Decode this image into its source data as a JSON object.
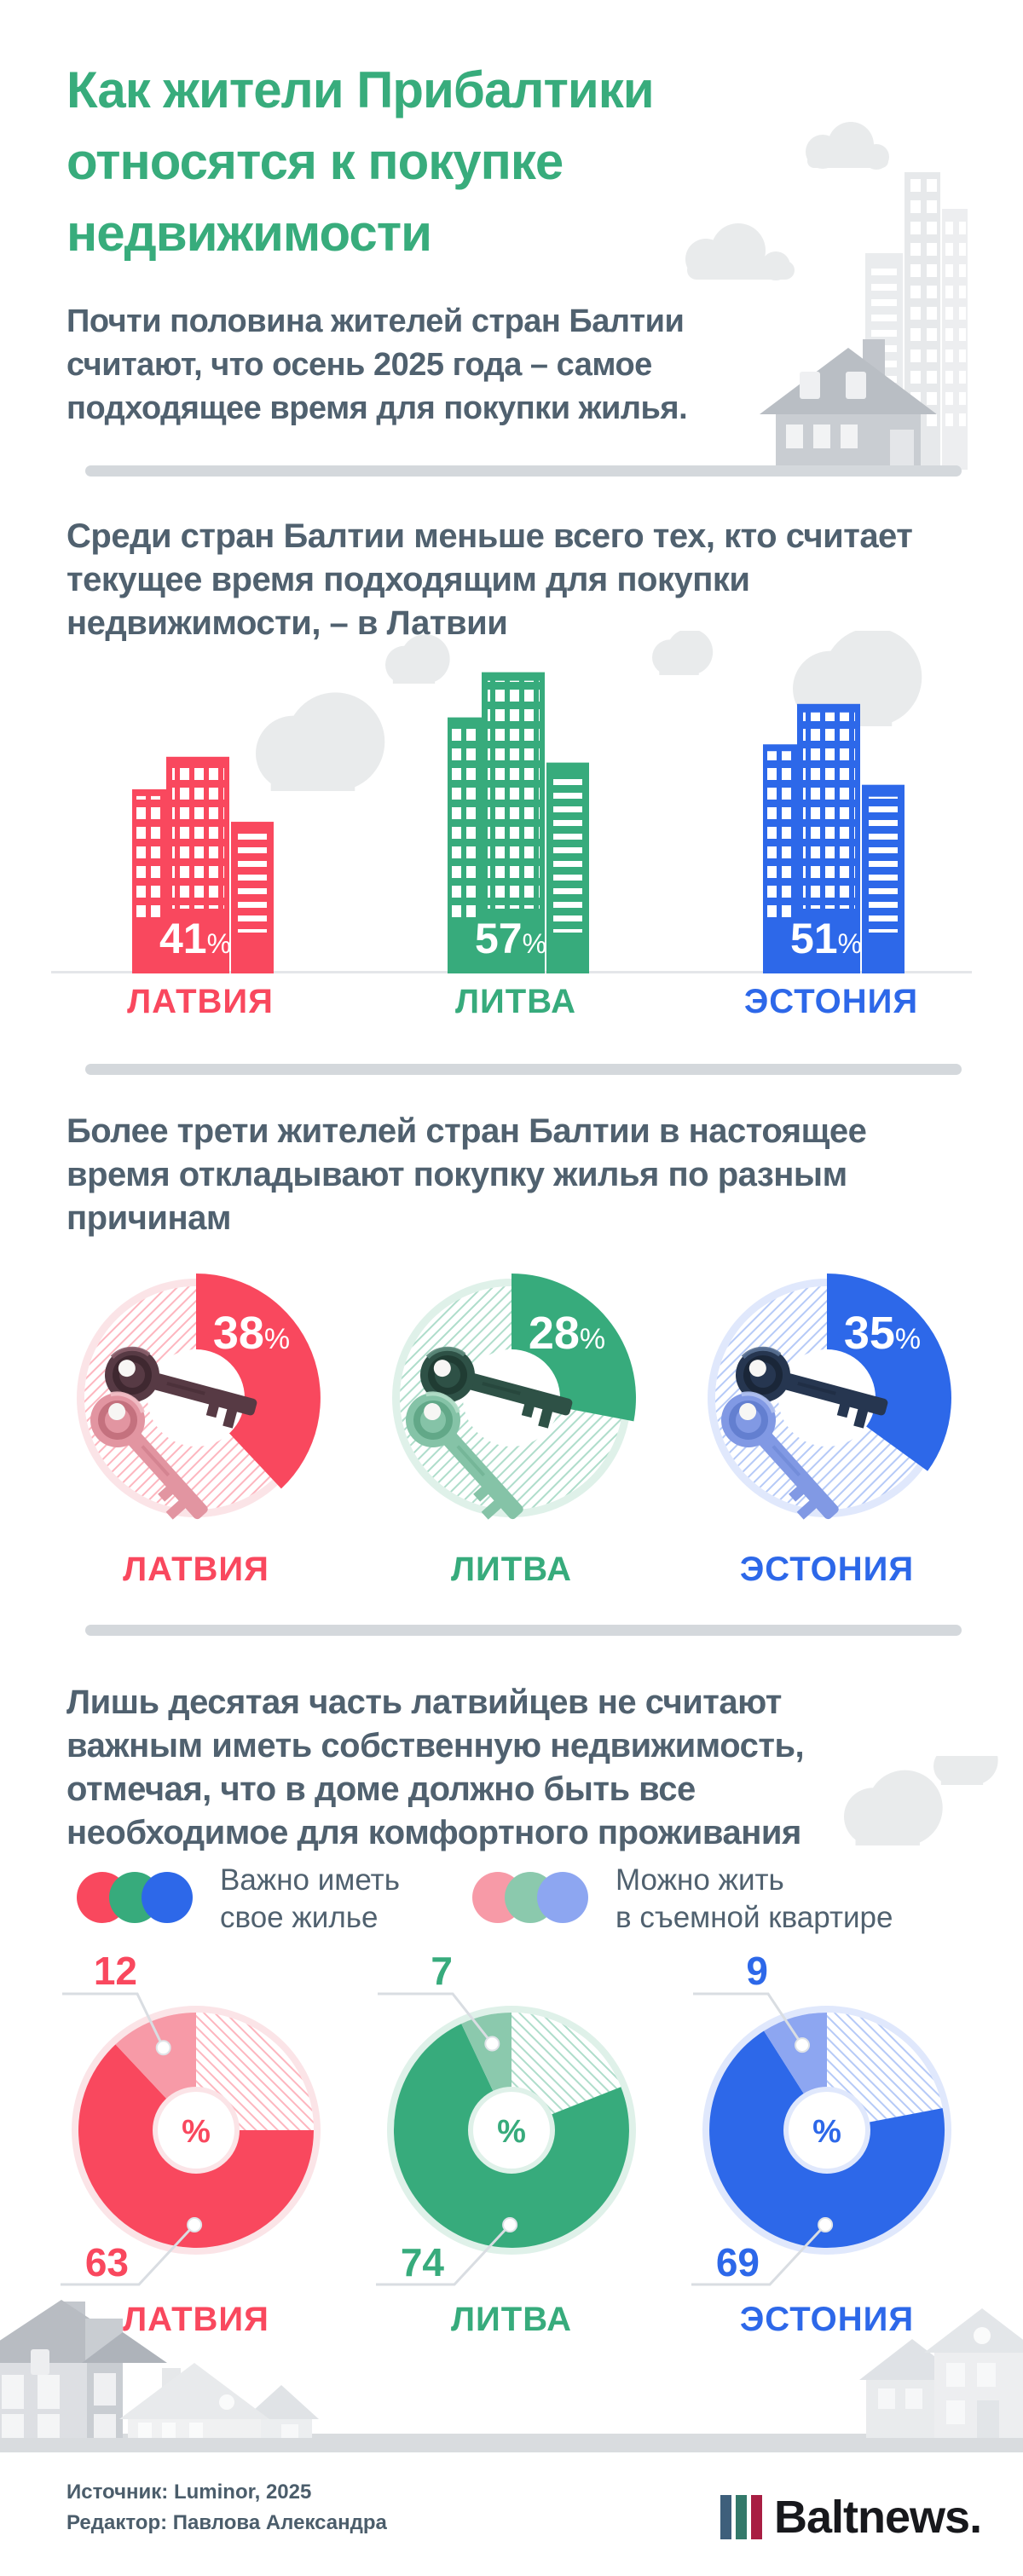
{
  "percent_sign": "%",
  "header": {
    "title_lines": [
      "Как жители Прибалтики",
      "относятся к покупке",
      "недвижимости"
    ],
    "intro_lines": [
      "Почти половина жителей стран Балтии",
      "считают, что осень 2025 года – самое",
      "подходящее время для покупки жилья."
    ]
  },
  "colors": {
    "slate": "#50616F",
    "divider": "#D4D8DC",
    "illustration_light": "#E9EBED",
    "illustration_mid": "#DADDE1",
    "illustration_dark": "#C9CDD2",
    "roof_gray": "#B9BEC4",
    "latvia": "#F9485E",
    "lithuania": "#37AB7C",
    "estonia": "#2D68E9",
    "latvia_light": "#F79AA7",
    "lithuania_light": "#8BC9AD",
    "estonia_light": "#8DA6F1",
    "latvia_pale": "#FBE4E7",
    "lithuania_pale": "#DFF1E9",
    "estonia_pale": "#E0E8FC",
    "latvia_hatch": "rgba(249,72,94,0.40)",
    "lithuania_hatch": "rgba(55,171,124,0.40)",
    "estonia_hatch": "rgba(45,104,233,0.35)",
    "callout_line": "#D9DDE2"
  },
  "buildings_chart": {
    "heading_lines": [
      "Среди стран Балтии меньше всего тех, кто считает",
      "текущее время подходящим для покупки",
      "недвижимости, – в Латвии"
    ],
    "items": [
      {
        "key": "latvia",
        "country": "ЛАТВИЯ",
        "value": 41
      },
      {
        "key": "lithuania",
        "country": "ЛИТВА",
        "value": 57
      },
      {
        "key": "estonia",
        "country": "ЭСТОНИЯ",
        "value": 51
      }
    ]
  },
  "donut_chart": {
    "heading_lines": [
      "Более трети жителей стран Балтии в настоящее",
      "время откладывают покупку жилья по разным",
      "причинам"
    ],
    "items": [
      {
        "key": "latvia",
        "country": "ЛАТВИЯ",
        "value": 38
      },
      {
        "key": "lithuania",
        "country": "ЛИТВА",
        "value": 28
      },
      {
        "key": "estonia",
        "country": "ЭСТОНИЯ",
        "value": 35
      }
    ]
  },
  "pie_chart": {
    "heading_lines": [
      "Лишь десятая часть латвийцев не считают",
      "важным иметь собственную недвижимость,",
      "отмечая, что в доме должно быть все",
      "необходимое для комфортного проживания"
    ],
    "legend": [
      {
        "variant": "solid",
        "label_lines": [
          "Важно иметь",
          "свое жилье"
        ]
      },
      {
        "variant": "light",
        "label_lines": [
          "Можно жить",
          "в съемной квартире"
        ]
      }
    ],
    "items": [
      {
        "key": "latvia",
        "country": "ЛАТВИЯ",
        "own": 63,
        "rent": 12
      },
      {
        "key": "lithuania",
        "country": "ЛИТВА",
        "own": 74,
        "rent": 7
      },
      {
        "key": "estonia",
        "country": "ЭСТОНИЯ",
        "own": 69,
        "rent": 9
      }
    ]
  },
  "footer": {
    "source": "Источник: Luminor, 2025",
    "editor": "Редактор: Павлова Александра",
    "logo_text": "Baltnews.",
    "logo_bar_colors": [
      "#3E5F7B",
      "#33796A",
      "#A81E43"
    ]
  },
  "chart_data": [
    {
      "type": "bar",
      "title": "Среди стран Балтии меньше всего тех, кто считает текущее время подходящим для покупки недвижимости, – в Латвии",
      "categories": [
        "ЛАТВИЯ",
        "ЛИТВА",
        "ЭСТОНИЯ"
      ],
      "values": [
        41,
        57,
        51
      ],
      "unit": "%",
      "xlabel": "",
      "ylabel": "",
      "notes": "bars drawn as skyscraper illustrations in country colors"
    },
    {
      "type": "pie",
      "title": "Более трети жителей стран Балтии в настоящее время откладывают покупку жилья по разным причинам",
      "categories": [
        "ЛАТВИЯ",
        "ЛИТВА",
        "ЭСТОНИЯ"
      ],
      "values": [
        38,
        28,
        35
      ],
      "unit": "%",
      "notes": "three donut charts; solid wedge = share postponing purchase, rest hatched; keys illustration in center"
    },
    {
      "type": "pie",
      "title": "Лишь десятая часть латвийцев не считают важным иметь собственную недвижимость",
      "categories": [
        "ЛАТВИЯ",
        "ЛИТВА",
        "ЭСТОНИЯ"
      ],
      "series": [
        {
          "name": "Важно иметь свое жилье",
          "values": [
            63,
            74,
            69
          ]
        },
        {
          "name": "Можно жить в съемной квартире",
          "values": [
            12,
            7,
            9
          ]
        }
      ],
      "unit": "%",
      "notes": "three pies; remainder of each pie is hatched (no answer)"
    }
  ]
}
